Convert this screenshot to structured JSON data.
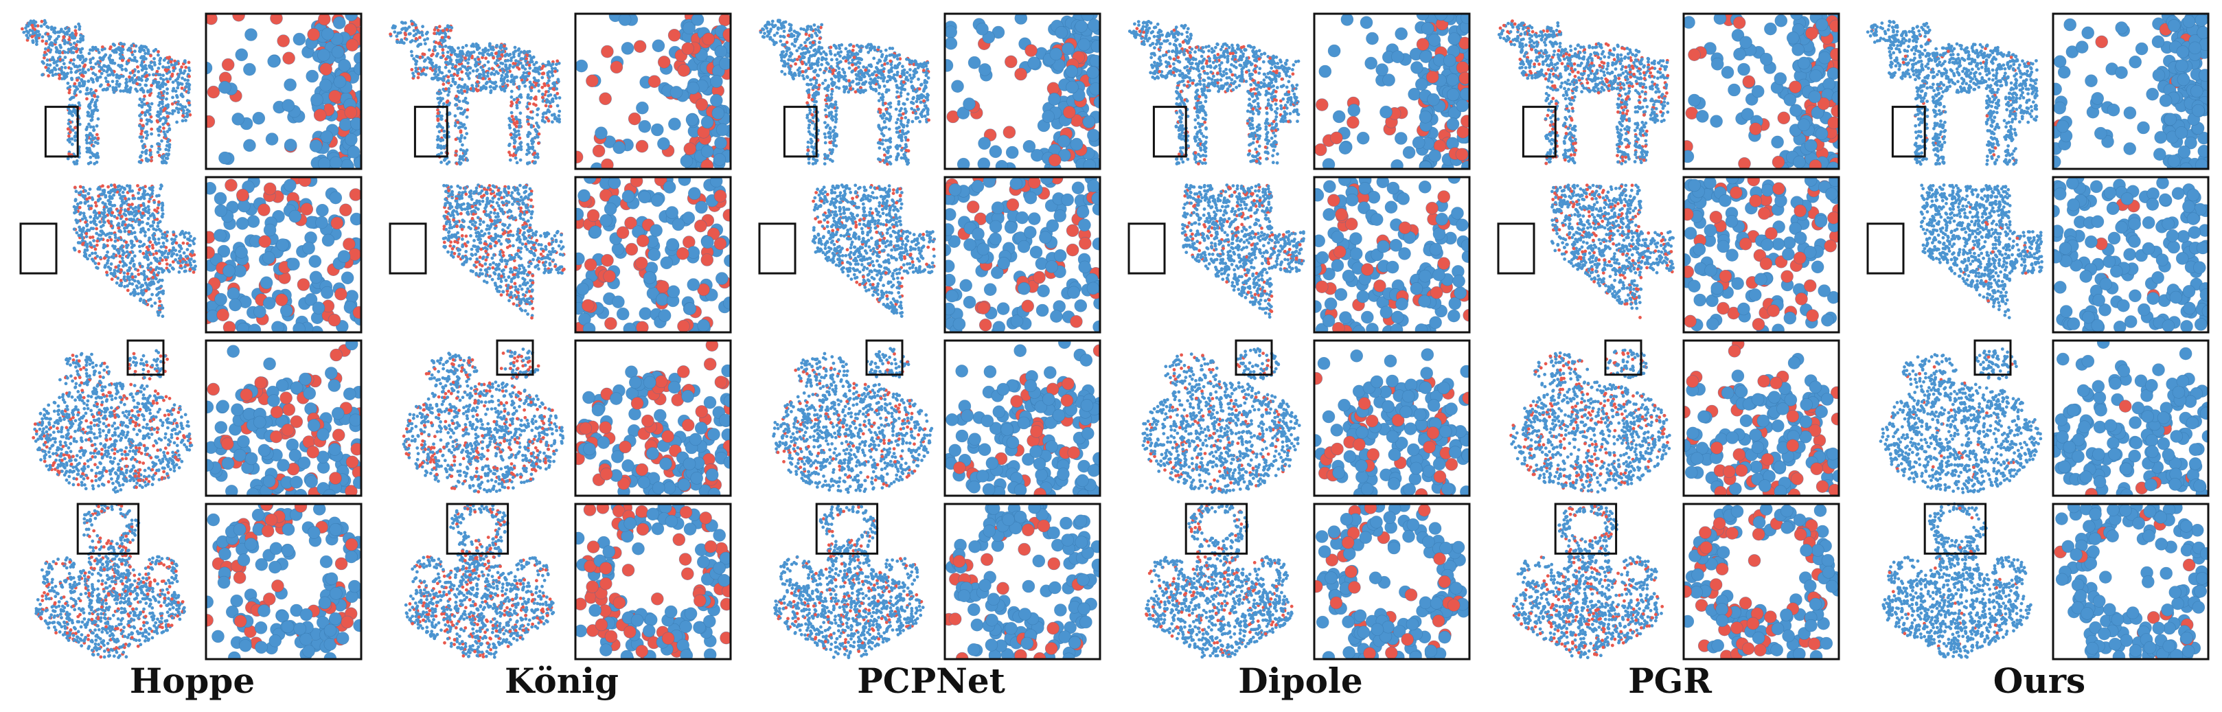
{
  "figure": {
    "methods": [
      {
        "label": "Hoppe",
        "red_fraction": 0.3
      },
      {
        "label": "König",
        "red_fraction": 0.35
      },
      {
        "label": "PCPNet",
        "red_fraction": 0.18
      },
      {
        "label": "Dipole",
        "red_fraction": 0.22
      },
      {
        "label": "PGR",
        "red_fraction": 0.3
      },
      {
        "label": "Ours",
        "red_fraction": 0.04
      }
    ],
    "shapes": [
      "horse",
      "plane",
      "bunny",
      "vase"
    ],
    "colors": {
      "correct": "#4b94d0",
      "flipped": "#e8584d",
      "frame": "#111111"
    }
  }
}
